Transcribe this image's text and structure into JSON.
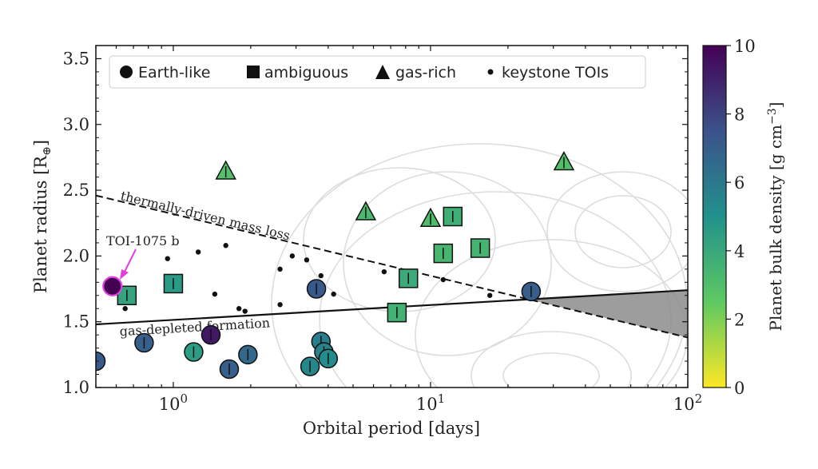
{
  "chart_data": {
    "type": "scatter",
    "xlabel": "Orbital period [days]",
    "ylabel": "Planet radius [R",
    "ylabel_sub": "⊕",
    "ylabel_end": "]",
    "x_scale": "log",
    "xlim": [
      0.5,
      100
    ],
    "ylim": [
      1.0,
      3.6
    ],
    "x_ticks": [
      {
        "v": 1,
        "base": "10",
        "exp": "0"
      },
      {
        "v": 10,
        "base": "10",
        "exp": "1"
      },
      {
        "v": 100,
        "base": "10",
        "exp": "2"
      }
    ],
    "y_ticks": [
      "1.0",
      "1.5",
      "2.0",
      "2.5",
      "3.0",
      "3.5"
    ],
    "colorbar": {
      "label": "Planet bulk density [g cm",
      "label_exp": "−3",
      "label_end": "]",
      "range": [
        0,
        10
      ],
      "ticks": [
        "0",
        "2",
        "4",
        "6",
        "8",
        "10"
      ],
      "colors": [
        "#fde725",
        "#5ec962",
        "#21918c",
        "#3b528b",
        "#440154"
      ]
    },
    "legend": {
      "placement": "top",
      "entries": [
        {
          "marker": "circle",
          "label": "Earth-like"
        },
        {
          "marker": "square",
          "label": "ambiguous"
        },
        {
          "marker": "triangle",
          "label": "gas-rich"
        },
        {
          "marker": "dot",
          "label": "keystone TOIs"
        }
      ]
    },
    "lines": [
      {
        "label": "thermally-driven mass loss",
        "style": "dashed",
        "x": [
          0.5,
          100
        ],
        "y": [
          2.46,
          1.38
        ]
      },
      {
        "label": "gas-depleted formation",
        "style": "solid",
        "x": [
          0.5,
          100
        ],
        "y": [
          1.48,
          1.74
        ]
      }
    ],
    "points": [
      {
        "x": 0.5,
        "y": 1.2,
        "marker": "circle",
        "density": 7.2
      },
      {
        "x": 0.77,
        "y": 1.34,
        "marker": "circle",
        "density": 7.0
      },
      {
        "x": 1.2,
        "y": 1.27,
        "marker": "circle",
        "density": 4.5
      },
      {
        "x": 1.4,
        "y": 1.4,
        "marker": "circle",
        "density": 9.3
      },
      {
        "x": 1.65,
        "y": 1.14,
        "marker": "circle",
        "density": 7.0
      },
      {
        "x": 1.95,
        "y": 1.25,
        "marker": "circle",
        "density": 6.6
      },
      {
        "x": 3.4,
        "y": 1.16,
        "marker": "circle",
        "density": 5.4
      },
      {
        "x": 3.6,
        "y": 1.75,
        "marker": "circle",
        "density": 7.2
      },
      {
        "x": 3.75,
        "y": 1.35,
        "marker": "circle",
        "density": 5.8
      },
      {
        "x": 3.85,
        "y": 1.27,
        "marker": "circle",
        "density": 5.6
      },
      {
        "x": 4.0,
        "y": 1.22,
        "marker": "circle",
        "density": 5.2
      },
      {
        "x": 24.6,
        "y": 1.73,
        "marker": "circle",
        "density": 7.0
      },
      {
        "x": 0.66,
        "y": 1.7,
        "marker": "square",
        "density": 4.2
      },
      {
        "x": 1.0,
        "y": 1.79,
        "marker": "square",
        "density": 4.6
      },
      {
        "x": 7.4,
        "y": 1.57,
        "marker": "square",
        "density": 3.6
      },
      {
        "x": 8.2,
        "y": 1.83,
        "marker": "square",
        "density": 3.9
      },
      {
        "x": 11.2,
        "y": 2.02,
        "marker": "square",
        "density": 3.4
      },
      {
        "x": 12.2,
        "y": 2.3,
        "marker": "square",
        "density": 3.7
      },
      {
        "x": 15.6,
        "y": 2.06,
        "marker": "square",
        "density": 3.5
      },
      {
        "x": 1.6,
        "y": 2.64,
        "marker": "triangle",
        "density": 2.9
      },
      {
        "x": 5.6,
        "y": 2.33,
        "marker": "triangle",
        "density": 3.2
      },
      {
        "x": 10.0,
        "y": 2.28,
        "marker": "triangle",
        "density": 3.1
      },
      {
        "x": 33.0,
        "y": 2.71,
        "marker": "triangle",
        "density": 3.0
      }
    ],
    "keystone_points": [
      {
        "x": 0.65,
        "y": 1.6
      },
      {
        "x": 0.95,
        "y": 1.98
      },
      {
        "x": 1.25,
        "y": 2.03
      },
      {
        "x": 1.45,
        "y": 1.71
      },
      {
        "x": 1.6,
        "y": 2.08
      },
      {
        "x": 1.8,
        "y": 1.6
      },
      {
        "x": 1.9,
        "y": 1.58
      },
      {
        "x": 2.6,
        "y": 1.63
      },
      {
        "x": 2.6,
        "y": 1.9
      },
      {
        "x": 2.9,
        "y": 2.0
      },
      {
        "x": 3.3,
        "y": 1.97
      },
      {
        "x": 3.75,
        "y": 1.85
      },
      {
        "x": 4.2,
        "y": 1.71
      },
      {
        "x": 6.6,
        "y": 1.88
      },
      {
        "x": 11.2,
        "y": 1.82
      },
      {
        "x": 17.0,
        "y": 1.7
      }
    ],
    "annotation": {
      "text": "TOI-1075 b",
      "x": 0.58,
      "y": 1.77,
      "color": "#e040e0"
    }
  }
}
